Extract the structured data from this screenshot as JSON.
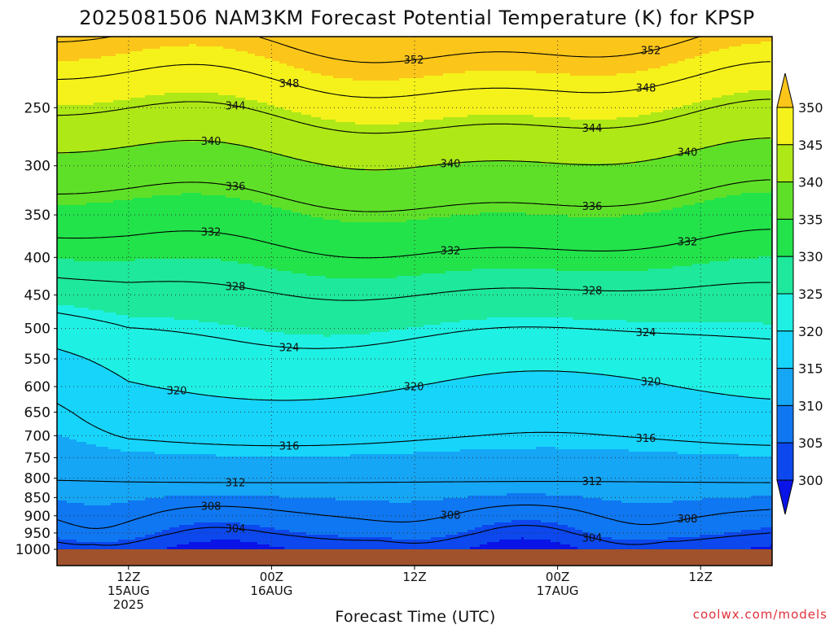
{
  "chart_data": {
    "type": "heatmap",
    "title": "2025081506 NAM3KM Forecast Potential Temperature (K) for KPSP",
    "xlabel": "Forecast Time (UTC)",
    "ylabel": "",
    "x_ticks": [
      {
        "line1": "12Z",
        "line2": "15AUG",
        "line3": "2025",
        "hour": 6
      },
      {
        "line1": "00Z",
        "line2": "16AUG",
        "line3": "",
        "hour": 18
      },
      {
        "line1": "12Z",
        "line2": "",
        "line3": "",
        "hour": 30
      },
      {
        "line1": "00Z",
        "line2": "17AUG",
        "line3": "",
        "hour": 42
      },
      {
        "line1": "12Z",
        "line2": "",
        "line3": "",
        "hour": 54
      }
    ],
    "x_range_hours": [
      0,
      60
    ],
    "y_axis": "pressure (hPa, log scale, inverted)",
    "y_ticks": [
      "250",
      "300",
      "350",
      "400",
      "450",
      "500",
      "550",
      "600",
      "650",
      "700",
      "750",
      "800",
      "850",
      "900",
      "950",
      "1000"
    ],
    "y_range": [
      200,
      1000
    ],
    "grid": "dotted at ticks",
    "colorbar": {
      "ticks": [
        "300",
        "305",
        "310",
        "315",
        "320",
        "325",
        "330",
        "335",
        "340",
        "345",
        "350"
      ],
      "bins": [
        {
          "range": [
            295,
            300
          ],
          "color": "#0a14e6"
        },
        {
          "range": [
            300,
            305
          ],
          "color": "#0c48ee"
        },
        {
          "range": [
            305,
            310
          ],
          "color": "#0f77f2"
        },
        {
          "range": [
            310,
            315
          ],
          "color": "#15a6f5"
        },
        {
          "range": [
            315,
            320
          ],
          "color": "#17d4fb"
        },
        {
          "range": [
            320,
            325
          ],
          "color": "#1ff0e4"
        },
        {
          "range": [
            325,
            330
          ],
          "color": "#1ee89b"
        },
        {
          "range": [
            330,
            335
          ],
          "color": "#22e34a"
        },
        {
          "range": [
            335,
            340
          ],
          "color": "#5fe028"
        },
        {
          "range": [
            340,
            345
          ],
          "color": "#aee817"
        },
        {
          "range": [
            345,
            350
          ],
          "color": "#f4f21a"
        },
        {
          "range": [
            350,
            355
          ],
          "color": "#fcc51a"
        }
      ]
    },
    "terrain_color": "#a0522d",
    "contours": [
      {
        "level": 304,
        "labels": [
          "304",
          "304"
        ]
      },
      {
        "level": 308,
        "labels": [
          "308",
          "308",
          "308"
        ]
      },
      {
        "level": 312,
        "labels": [
          "312",
          "312"
        ]
      },
      {
        "level": 316,
        "labels": [
          "316",
          "316"
        ]
      },
      {
        "level": 320,
        "labels": [
          "320",
          "320",
          "320"
        ]
      },
      {
        "level": 324,
        "labels": [
          "324",
          "324"
        ]
      },
      {
        "level": 328,
        "labels": [
          "328",
          "328"
        ]
      },
      {
        "level": 332,
        "labels": [
          "332",
          "332",
          "332"
        ]
      },
      {
        "level": 336,
        "labels": [
          "336",
          "336"
        ]
      },
      {
        "level": 340,
        "labels": [
          "340",
          "340",
          "340"
        ]
      },
      {
        "level": 344,
        "labels": [
          "344",
          "344"
        ]
      },
      {
        "level": 348,
        "labels": [
          "348",
          "348"
        ]
      },
      {
        "level": 352,
        "labels": [
          "352",
          "352",
          "352"
        ]
      }
    ]
  },
  "credit": "coolwx.com/models"
}
